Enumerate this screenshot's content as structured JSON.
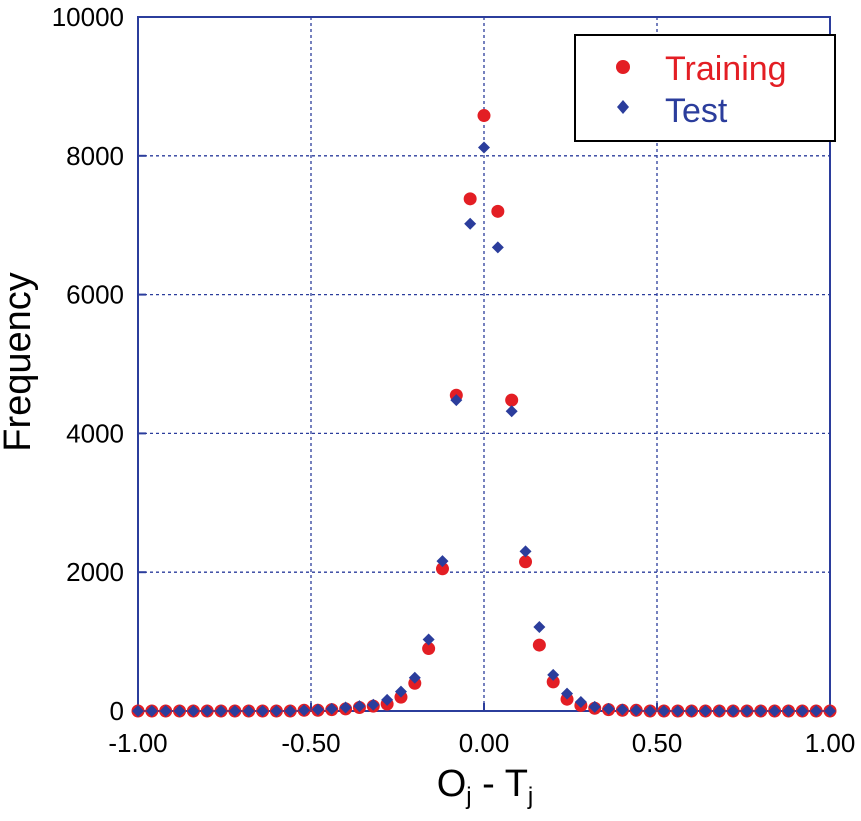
{
  "chart_data": {
    "type": "scatter",
    "title": "",
    "xlabel": {
      "main": "O",
      "sub1": "j",
      "mid": " - T",
      "sub2": "j"
    },
    "ylabel": "Frequency",
    "xlim": [
      -1.0,
      1.0
    ],
    "ylim": [
      0,
      10000
    ],
    "xticks": [
      -1.0,
      -0.5,
      0.0,
      0.5,
      1.0
    ],
    "xtick_labels": [
      "-1.00",
      "-0.50",
      "0.00",
      "0.50",
      "1.00"
    ],
    "yticks": [
      0,
      2000,
      4000,
      6000,
      8000,
      10000
    ],
    "ytick_labels": [
      "0",
      "2000",
      "4000",
      "6000",
      "8000",
      "10000"
    ],
    "grid": true,
    "legend_position": "top-right",
    "colors": {
      "axis": "#2b3d9c",
      "grid": "#2b3d9c",
      "training": "#e31e24",
      "test": "#2b3d9c"
    },
    "series": [
      {
        "name": "Training",
        "marker": "circle",
        "x": [
          -1.0,
          -0.96,
          -0.92,
          -0.88,
          -0.84,
          -0.8,
          -0.76,
          -0.72,
          -0.68,
          -0.64,
          -0.6,
          -0.56,
          -0.52,
          -0.48,
          -0.44,
          -0.4,
          -0.36,
          -0.32,
          -0.28,
          -0.24,
          -0.2,
          -0.16,
          -0.12,
          -0.08,
          -0.04,
          0.0,
          0.04,
          0.08,
          0.12,
          0.16,
          0.2,
          0.24,
          0.28,
          0.32,
          0.36,
          0.4,
          0.44,
          0.48,
          0.52,
          0.56,
          0.6,
          0.64,
          0.68,
          0.72,
          0.76,
          0.8,
          0.84,
          0.88,
          0.92,
          0.96,
          1.0
        ],
        "y": [
          0,
          0,
          0,
          0,
          0,
          0,
          0,
          0,
          0,
          0,
          0,
          0,
          10,
          10,
          20,
          30,
          50,
          70,
          100,
          200,
          400,
          900,
          2050,
          4550,
          7380,
          8580,
          7200,
          4480,
          2150,
          950,
          420,
          170,
          80,
          40,
          20,
          10,
          10,
          0,
          0,
          0,
          0,
          0,
          0,
          0,
          0,
          0,
          0,
          0,
          0,
          0,
          0
        ]
      },
      {
        "name": "Test",
        "marker": "diamond",
        "x": [
          -1.0,
          -0.96,
          -0.92,
          -0.88,
          -0.84,
          -0.8,
          -0.76,
          -0.72,
          -0.68,
          -0.64,
          -0.6,
          -0.56,
          -0.52,
          -0.48,
          -0.44,
          -0.4,
          -0.36,
          -0.32,
          -0.28,
          -0.24,
          -0.2,
          -0.16,
          -0.12,
          -0.08,
          -0.04,
          0.0,
          0.04,
          0.08,
          0.12,
          0.16,
          0.2,
          0.24,
          0.28,
          0.32,
          0.36,
          0.4,
          0.44,
          0.48,
          0.52,
          0.56,
          0.6,
          0.64,
          0.68,
          0.72,
          0.76,
          0.8,
          0.84,
          0.88,
          0.92,
          0.96,
          1.0
        ],
        "y": [
          0,
          0,
          0,
          0,
          0,
          0,
          0,
          0,
          0,
          0,
          0,
          0,
          10,
          20,
          30,
          50,
          70,
          90,
          160,
          280,
          480,
          1030,
          2160,
          4480,
          7020,
          8120,
          6680,
          4320,
          2300,
          1210,
          520,
          250,
          130,
          60,
          30,
          20,
          10,
          0,
          0,
          0,
          0,
          0,
          0,
          0,
          0,
          0,
          0,
          0,
          0,
          0,
          0
        ]
      }
    ]
  }
}
